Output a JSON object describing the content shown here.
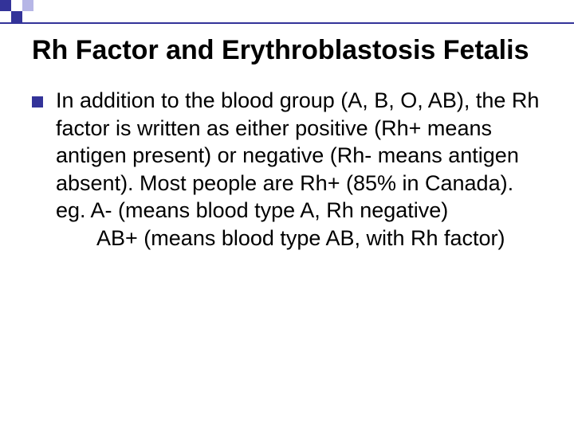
{
  "colors": {
    "accent": "#333399",
    "accent_light": "#b6b6e6",
    "text": "#000000",
    "background": "#ffffff",
    "line": "#333399"
  },
  "decoration": {
    "square_size": 14,
    "pattern": [
      [
        "accent",
        "none",
        "accent_light",
        "none",
        "none"
      ],
      [
        "none",
        "accent",
        "none",
        "none",
        "none"
      ]
    ]
  },
  "title": {
    "text": "Rh Factor and Erythroblastosis Fetalis",
    "fontsize": 34,
    "weight": "bold"
  },
  "bullet": {
    "marker_color": "#333399",
    "marker_size": 14,
    "lines": [
      "In addition to the blood group (A, B, O, AB), the Rh factor is written as either positive (Rh+ means antigen present) or negative (Rh- means antigen absent). Most people are Rh+ (85% in Canada).",
      "eg.  A- (means blood type A, Rh negative)",
      "       AB+ (means blood type AB, with Rh factor)"
    ],
    "fontsize": 27
  }
}
